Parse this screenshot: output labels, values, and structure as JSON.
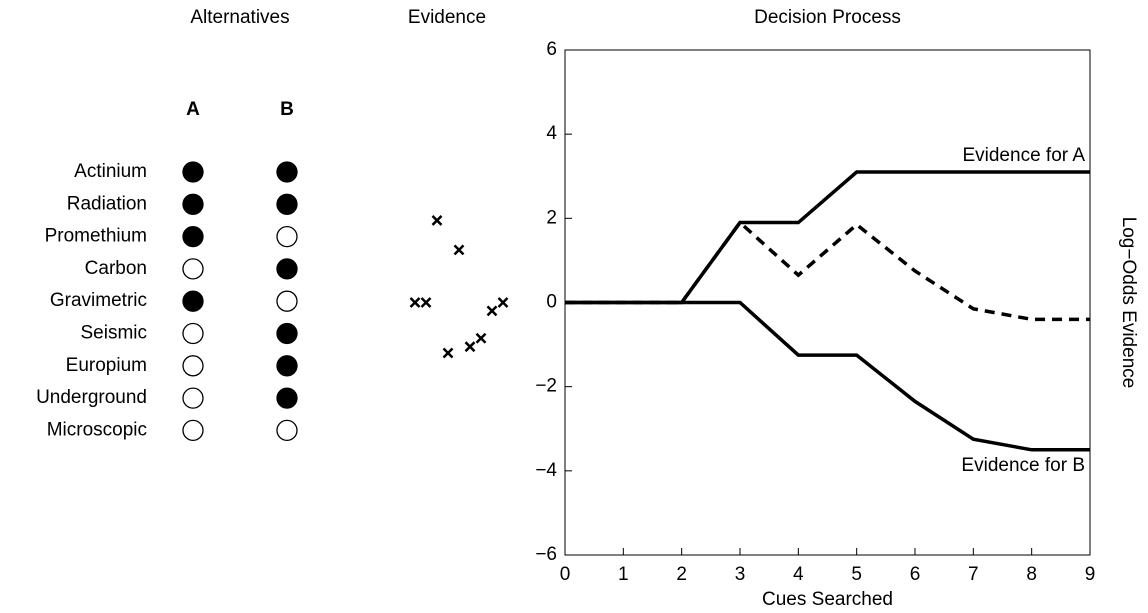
{
  "chart_data": [
    {
      "type": "matrix",
      "title": "Alternatives",
      "columns": [
        "A",
        "B"
      ],
      "rows": [
        "Actinium",
        "Radiation",
        "Promethium",
        "Carbon",
        "Gravimetric",
        "Seismic",
        "Europium",
        "Underground",
        "Microscopic"
      ],
      "values": [
        [
          1,
          1
        ],
        [
          1,
          1
        ],
        [
          1,
          0
        ],
        [
          0,
          1
        ],
        [
          1,
          0
        ],
        [
          0,
          1
        ],
        [
          0,
          1
        ],
        [
          0,
          1
        ],
        [
          0,
          0
        ]
      ],
      "color": "#000000"
    },
    {
      "type": "scatter",
      "title": "Evidence",
      "marker": "x",
      "color": "#000000",
      "values": [
        0,
        0,
        1.95,
        -1.2,
        1.25,
        -1.05,
        -0.85,
        -0.2,
        0
      ]
    },
    {
      "type": "line",
      "title": "Decision Process",
      "xlabel": "Cues Searched",
      "ylabel": "Log−Odds Evidence",
      "x": [
        0,
        1,
        2,
        3,
        4,
        5,
        6,
        7,
        8,
        9
      ],
      "series": [
        {
          "name": "Evidence for A",
          "color": "#000000",
          "linestyle": "solid",
          "values": [
            0,
            0,
            0,
            1.9,
            1.9,
            3.1,
            3.1,
            3.1,
            3.1,
            3.1
          ]
        },
        {
          "color": "#000000",
          "linestyle": "dashed",
          "values": [
            0,
            0,
            0,
            1.9,
            0.65,
            1.85,
            0.75,
            -0.15,
            -0.4,
            -0.4
          ]
        },
        {
          "name": "Evidence for B",
          "color": "#000000",
          "linestyle": "solid",
          "values": [
            0,
            0,
            0,
            0,
            -1.25,
            -1.25,
            -2.35,
            -3.25,
            -3.5,
            -3.5
          ]
        }
      ],
      "xlim": [
        0,
        9
      ],
      "ylim": [
        -6,
        6
      ],
      "xticks": [
        0,
        1,
        2,
        3,
        4,
        5,
        6,
        7,
        8,
        9
      ],
      "yticks": [
        {
          "value": -6,
          "label": "−6"
        },
        {
          "value": -4,
          "label": "−4"
        },
        {
          "value": -2,
          "label": "−2"
        },
        0,
        2,
        4,
        6
      ]
    }
  ]
}
